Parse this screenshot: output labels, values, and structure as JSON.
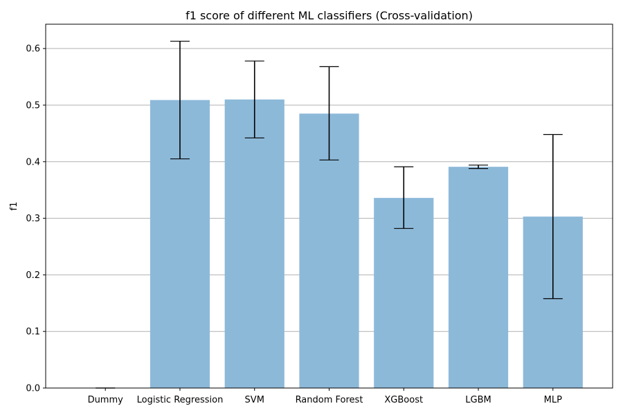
{
  "chart_data": {
    "type": "bar",
    "title": "f1 score of different ML classifiers (Cross-validation)",
    "xlabel": "",
    "ylabel": "f1",
    "categories": [
      "Dummy",
      "Logistic Regression",
      "SVM",
      "Random Forest",
      "XGBoost",
      "LGBM",
      "MLP"
    ],
    "values": [
      0.0,
      0.509,
      0.51,
      0.485,
      0.336,
      0.391,
      0.303
    ],
    "error_lower": [
      0.0,
      0.405,
      0.442,
      0.403,
      0.282,
      0.388,
      0.158
    ],
    "error_upper": [
      0.0,
      0.613,
      0.578,
      0.568,
      0.391,
      0.394,
      0.448
    ],
    "ylim": [
      0,
      0.643
    ],
    "yticks": [
      "0.0",
      "0.1",
      "0.2",
      "0.3",
      "0.4",
      "0.5",
      "0.6"
    ],
    "grid": "y",
    "bar_color": "#8db9d9",
    "error_color": "#000000"
  }
}
